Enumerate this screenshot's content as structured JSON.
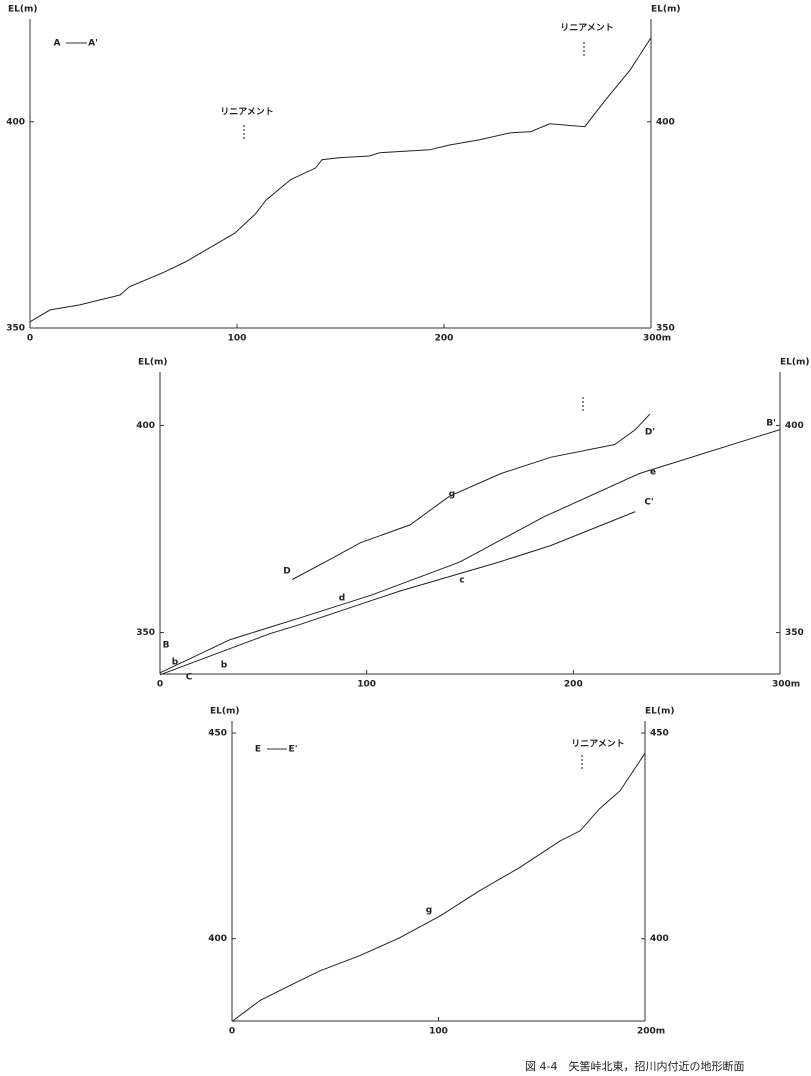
{
  "chart_data": [
    {
      "type": "line",
      "y_label": "EL(m)",
      "annotations": [
        "A",
        "A'",
        "リニアメント",
        "リニアメント"
      ],
      "xlim": [
        0,
        300
      ],
      "xticks": [
        0,
        100,
        200,
        {
          "value": 300,
          "label": "300m"
        }
      ],
      "ylim": [
        350,
        422
      ],
      "yticks": [
        350,
        400
      ],
      "series": [
        {
          "color": "#222222",
          "x": [
            0,
            9.7,
            24,
            43.5,
            48,
            65,
            75,
            99,
            109,
            114,
            126,
            138,
            141,
            150,
            164,
            169,
            193,
            203,
            217,
            232,
            242,
            251,
            268,
            278,
            290,
            300
          ],
          "values": [
            351.5,
            354.4,
            355.6,
            358,
            360,
            363.6,
            366,
            373,
            377.7,
            381,
            386,
            388.8,
            390.8,
            391.3,
            391.7,
            392.5,
            393.2,
            394.4,
            395.6,
            397.3,
            397.6,
            399.5,
            398.8,
            405.3,
            412.6,
            420.4
          ]
        }
      ]
    },
    {
      "type": "line",
      "y_label": "EL(m)",
      "annotations": [
        "B",
        "b",
        "b",
        "C",
        "d",
        "c",
        "e",
        "C'",
        "B'",
        "D",
        "D'",
        "g"
      ],
      "xlim": [
        0,
        300
      ],
      "xticks": [
        0,
        100,
        200,
        {
          "value": 300,
          "label": "300m"
        }
      ],
      "ylim": [
        340,
        410
      ],
      "yticks": [
        350,
        400
      ],
      "series": [
        {
          "color": "#222222",
          "x": [
            0,
            34,
            68,
            102,
            145,
            186,
            232,
            300
          ],
          "values": [
            340.3,
            348.3,
            353.6,
            359,
            367,
            378,
            388.4,
            399
          ]
        },
        {
          "color": "#222222",
          "x": [
            0,
            53,
            68,
            116,
            164,
            189,
            230
          ],
          "values": [
            339.8,
            349.7,
            352,
            360,
            367,
            371,
            379.2
          ]
        },
        {
          "color": "#222222",
          "x": [
            64,
            82,
            97,
            121,
            140,
            165,
            189,
            220,
            230,
            237
          ],
          "values": [
            362.8,
            367.6,
            371.7,
            376,
            382.9,
            388.4,
            392.3,
            395.4,
            399,
            402.7
          ]
        }
      ]
    },
    {
      "type": "line",
      "y_label": "EL(m)",
      "annotations": [
        "E",
        "E'",
        "リニアメント",
        "g"
      ],
      "xlim": [
        0,
        200
      ],
      "xticks": [
        0,
        100,
        {
          "value": 200,
          "label": "200m"
        }
      ],
      "ylim": [
        380,
        450
      ],
      "yticks": [
        400,
        450
      ],
      "series": [
        {
          "color": "#222222",
          "x": [
            0,
            13.6,
            28,
            42.6,
            62,
            81,
            101,
            120,
            139,
            159,
            168.5,
            178,
            188,
            200
          ],
          "values": [
            379.9,
            385,
            388.6,
            392.2,
            395.9,
            400.2,
            405.6,
            411.7,
            417.2,
            423.8,
            426.2,
            431.6,
            436,
            445.1
          ]
        }
      ]
    }
  ],
  "caption": "図 4-4　矢筈峠北東，招川内付近の地形断面"
}
